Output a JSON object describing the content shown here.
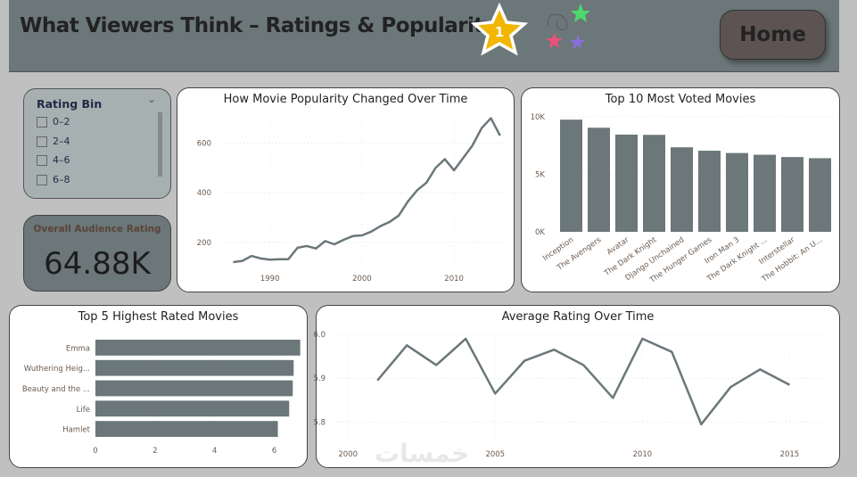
{
  "header": {
    "title": "What Viewers Think – Ratings & Popularity",
    "badge_number": "1",
    "home_label": "Home"
  },
  "slicer": {
    "title": "Rating Bin",
    "items": [
      "0–2",
      "2–4",
      "4–6",
      "6–8"
    ]
  },
  "kpi": {
    "label": "Overall Audience Rating",
    "value": "64.88K"
  },
  "watermark": "خمسات",
  "colors": {
    "bar": "#6b7779",
    "line": "#6b7779",
    "header": "#6b7779",
    "background": "#c0c0c0"
  },
  "chart_data": [
    {
      "type": "line",
      "title": "How Movie Popularity Changed Over Time",
      "xlabel": "",
      "ylabel": "",
      "x": [
        1986,
        1987,
        1988,
        1989,
        1990,
        1991,
        1992,
        1993,
        1994,
        1995,
        1996,
        1997,
        1998,
        1999,
        2000,
        2001,
        2002,
        2003,
        2004,
        2005,
        2006,
        2007,
        2008,
        2009,
        2010,
        2011,
        2012,
        2013,
        2014,
        2015
      ],
      "y": [
        120,
        125,
        145,
        135,
        130,
        132,
        132,
        178,
        185,
        175,
        205,
        192,
        210,
        225,
        228,
        243,
        265,
        282,
        308,
        365,
        410,
        440,
        500,
        535,
        490,
        540,
        590,
        660,
        700,
        630
      ],
      "xticks": [
        1990,
        2000,
        2010
      ],
      "yticks": [
        200,
        400,
        600
      ],
      "xlim": [
        1984.8,
        2015.8
      ],
      "ylim": [
        95,
        720
      ]
    },
    {
      "type": "bar",
      "title": "Top 10 Most Voted Movies",
      "categories": [
        "Inception",
        "The Avengers",
        "Avatar",
        "The Dark Knight",
        "Django Unchained",
        "The Hunger Games",
        "Iron Man 3",
        "The Dark Knight ...",
        "Interstellar",
        "The Hobbit: An U..."
      ],
      "values": [
        9750,
        9050,
        8450,
        8430,
        7350,
        7050,
        6850,
        6700,
        6500,
        6400
      ],
      "yticks": [
        0,
        5000,
        10000
      ],
      "ytick_labels": [
        "0K",
        "5K",
        "10K"
      ],
      "ylim": [
        0,
        10000
      ]
    },
    {
      "type": "bar",
      "orientation": "horizontal",
      "title": "Top 5 Highest Rated Movies",
      "categories": [
        "Emma",
        "Wuthering Heig...",
        "Beauty and the ...",
        "Life",
        "Hamlet"
      ],
      "values": [
        6.87,
        6.65,
        6.62,
        6.5,
        6.12
      ],
      "xticks": [
        0,
        2,
        4,
        6
      ],
      "xlim": [
        0,
        7
      ]
    },
    {
      "type": "line",
      "title": "Average Rating Over Time",
      "x": [
        2001,
        2002,
        2003,
        2004,
        2005,
        2006,
        2007,
        2008,
        2009,
        2010,
        2011,
        2012,
        2013,
        2014,
        2015
      ],
      "y": [
        5.895,
        5.975,
        5.93,
        5.99,
        5.865,
        5.94,
        5.965,
        5.93,
        5.855,
        5.99,
        5.96,
        5.795,
        5.88,
        5.92,
        5.885
      ],
      "xticks": [
        2000,
        2005,
        2010,
        2015
      ],
      "yticks": [
        5.8,
        5.9,
        6.0
      ],
      "ytick_labels": [
        "5.8",
        "5.9",
        "6.0"
      ],
      "xlim": [
        1999.6,
        2016.2
      ],
      "ylim": [
        5.75,
        6.0
      ]
    }
  ]
}
